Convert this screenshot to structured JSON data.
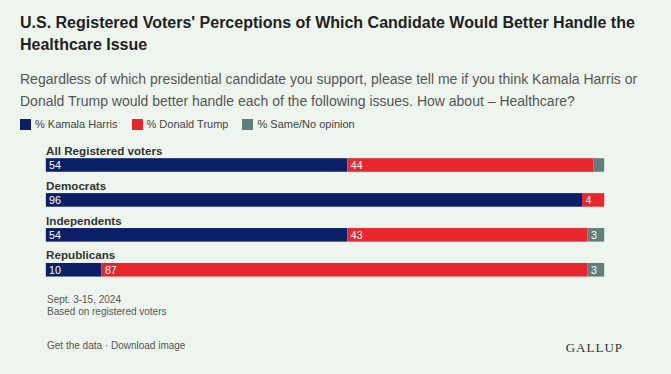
{
  "chart_data": {
    "type": "bar",
    "title": "U.S. Registered Voters' Perceptions of Which Candidate Would Better Handle the Healthcare Issue",
    "subtitle": "Regardless of which presidential candidate you support, please tell me if you think Kamala Harris or Donald Trump would better handle each of the following issues. How about – Healthcare?",
    "categories": [
      "All Registered voters",
      "Democrats",
      "Independents",
      "Republicans"
    ],
    "series": [
      {
        "name": "% Kamala Harris",
        "color": "#0b1f66",
        "values": [
          54,
          96,
          54,
          10
        ]
      },
      {
        "name": "% Donald Trump",
        "color": "#e8262d",
        "values": [
          44,
          4,
          43,
          87
        ]
      },
      {
        "name": "% Same/No opinion",
        "color": "#5f7f7b",
        "values": [
          2,
          0,
          3,
          3
        ],
        "value_labels": [
          null,
          null,
          "3",
          "3"
        ]
      }
    ],
    "xlim": [
      0,
      100
    ],
    "orientation": "horizontal",
    "stacked": true,
    "data_labels": true,
    "tick_labels": false,
    "grid": false,
    "legend": "top-left",
    "caption": [
      "Sept. 3-15, 2024",
      "Based on registered voters"
    ],
    "footer_links": "Get the data · Download image",
    "source": "GALLUP"
  }
}
